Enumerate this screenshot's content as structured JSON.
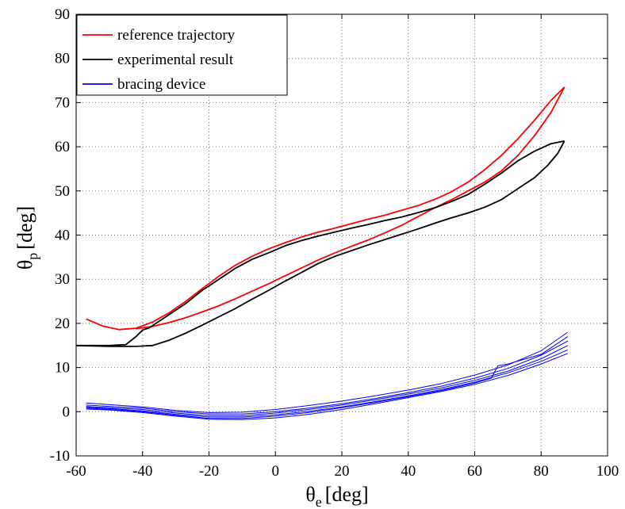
{
  "chart_data": {
    "type": "line",
    "xlabel": {
      "symbol": "θ",
      "sub": "e",
      "unit": "[deg]"
    },
    "ylabel": {
      "symbol": "θ",
      "sub": "p",
      "unit": "[deg]"
    },
    "xlim": [
      -60,
      100
    ],
    "ylim": [
      -10,
      90
    ],
    "xticks": [
      -60,
      -40,
      -20,
      0,
      20,
      40,
      60,
      80,
      100
    ],
    "yticks": [
      -10,
      0,
      10,
      20,
      30,
      40,
      50,
      60,
      70,
      80,
      90
    ],
    "grid": true,
    "legend_position": "top-left",
    "series": [
      {
        "name": "reference trajectory",
        "color": "#ff0000",
        "segments": [
          {
            "x": [
              -57,
              -52,
              -47,
              -42,
              -37,
              -32,
              -27,
              -22,
              -17,
              -12,
              -7,
              -2,
              3,
              8,
              13,
              18,
              23,
              28,
              33,
              38,
              43,
              48,
              53,
              58,
              63,
              68,
              73,
              78,
              83,
              87
            ],
            "y": [
              21.0,
              19.4,
              18.6,
              18.9,
              20.3,
              22.4,
              25.0,
              27.9,
              30.7,
              33.2,
              35.2,
              36.9,
              38.3,
              39.6,
              40.7,
              41.6,
              42.6,
              43.6,
              44.5,
              45.6,
              46.7,
              48.1,
              49.8,
              52.0,
              54.8,
              58.0,
              61.8,
              66.0,
              70.5,
              73.5
            ]
          },
          {
            "x": [
              87,
              83,
              78,
              73,
              68,
              63,
              58,
              53,
              48,
              43,
              38,
              33,
              28,
              23,
              18,
              13,
              8,
              3,
              -2,
              -7,
              -12,
              -17,
              -22,
              -27,
              -32,
              -37,
              -42
            ],
            "y": [
              73.5,
              67.8,
              62.5,
              58.0,
              54.5,
              52.0,
              50.0,
              48.0,
              46.2,
              44.2,
              42.2,
              40.5,
              38.9,
              37.5,
              36.0,
              34.4,
              32.6,
              30.8,
              29.0,
              27.3,
              25.6,
              24.0,
              22.6,
              21.3,
              20.2,
              19.3,
              18.8
            ]
          }
        ]
      },
      {
        "name": "experimental result",
        "color": "#000000",
        "segments": [
          {
            "x": [
              -60,
              -50,
              -45,
              -42,
              -40,
              -38,
              -35,
              -32,
              -30,
              -27,
              -22,
              -17,
              -12,
              -7,
              -2,
              3,
              8,
              13,
              18,
              23,
              28,
              33,
              38,
              43,
              48,
              53,
              58,
              63,
              68,
              73,
              78,
              83,
              87
            ],
            "y": [
              15.0,
              15.0,
              15.2,
              17.0,
              18.5,
              19.0,
              20.5,
              22.0,
              23.0,
              24.5,
              27.5,
              30.0,
              32.5,
              34.5,
              36.0,
              37.6,
              38.8,
              39.8,
              40.7,
              41.6,
              42.4,
              43.3,
              44.1,
              45.1,
              46.2,
              47.6,
              49.2,
              51.5,
              54.0,
              56.8,
              59.0,
              60.7,
              61.3
            ]
          },
          {
            "x": [
              87,
              85,
              82,
              78,
              73,
              68,
              63,
              58,
              53,
              48,
              43,
              38,
              33,
              28,
              23,
              18,
              13,
              8,
              3,
              -2,
              -7,
              -12,
              -17,
              -22,
              -27,
              -32,
              -37,
              -42,
              -50,
              -60
            ],
            "y": [
              61.3,
              58.5,
              55.8,
              53.0,
              50.5,
              48.0,
              46.3,
              45.0,
              43.9,
              42.7,
              41.4,
              40.2,
              39.0,
              37.8,
              36.5,
              35.2,
              33.6,
              31.6,
              29.6,
              27.5,
              25.5,
              23.4,
              21.5,
              19.6,
              17.8,
              16.2,
              15.0,
              14.8,
              14.8,
              15.0
            ]
          }
        ]
      },
      {
        "name": "bracing device",
        "color": "#0000ff",
        "segments": [
          {
            "x": [
              -57,
              -50,
              -40,
              -30,
              -20,
              -10,
              0,
              10,
              20,
              30,
              40,
              50,
              60,
              70,
              80,
              88
            ],
            "y": [
              1.5,
              1.2,
              0.8,
              0.0,
              -0.5,
              -0.5,
              0.0,
              0.8,
              1.8,
              3.0,
              4.3,
              5.8,
              7.6,
              9.8,
              12.8,
              16.0
            ]
          },
          {
            "x": [
              -57,
              -50,
              -40,
              -30,
              -20,
              -10,
              0,
              10,
              20,
              30,
              40,
              50,
              60,
              70,
              80,
              88
            ],
            "y": [
              1.0,
              0.7,
              0.2,
              -0.6,
              -1.2,
              -1.2,
              -0.7,
              0.1,
              1.1,
              2.3,
              3.6,
              5.0,
              6.7,
              8.8,
              11.4,
              14.0
            ]
          },
          {
            "x": [
              -57,
              -50,
              -40,
              -30,
              -20,
              -10,
              0,
              10,
              20,
              30,
              40,
              50,
              60,
              70,
              80,
              88
            ],
            "y": [
              0.6,
              0.4,
              -0.2,
              -1.0,
              -1.7,
              -1.8,
              -1.4,
              -0.6,
              0.5,
              1.8,
              3.2,
              4.6,
              6.2,
              8.2,
              10.8,
              13.2
            ]
          },
          {
            "x": [
              -57,
              -50,
              -40,
              -30,
              -20,
              -10,
              0,
              10,
              20,
              30,
              40,
              50,
              60,
              70,
              80,
              88
            ],
            "y": [
              2.0,
              1.6,
              1.1,
              0.3,
              -0.2,
              -0.1,
              0.5,
              1.4,
              2.4,
              3.6,
              4.9,
              6.4,
              8.3,
              10.6,
              13.8,
              18.0
            ]
          },
          {
            "x": [
              -57,
              -50,
              -40,
              -30,
              -20,
              -10,
              0,
              10,
              20,
              30,
              40,
              50,
              60,
              70,
              80,
              88
            ],
            "y": [
              1.2,
              0.9,
              0.5,
              -0.3,
              -0.9,
              -0.9,
              -0.3,
              0.5,
              1.5,
              2.7,
              4.0,
              5.4,
              7.1,
              9.2,
              12.0,
              15.0
            ]
          },
          {
            "x": [
              -57,
              -50,
              -40,
              -30,
              -20,
              -10,
              0,
              10,
              20,
              30,
              40,
              50,
              60,
              65,
              67,
              70,
              80,
              88
            ],
            "y": [
              0.8,
              0.5,
              0.0,
              -0.8,
              -1.5,
              -1.5,
              -1.0,
              -0.2,
              0.9,
              2.1,
              3.4,
              4.8,
              6.5,
              7.6,
              10.4,
              10.8,
              13.0,
              17.0
            ]
          }
        ]
      }
    ]
  }
}
